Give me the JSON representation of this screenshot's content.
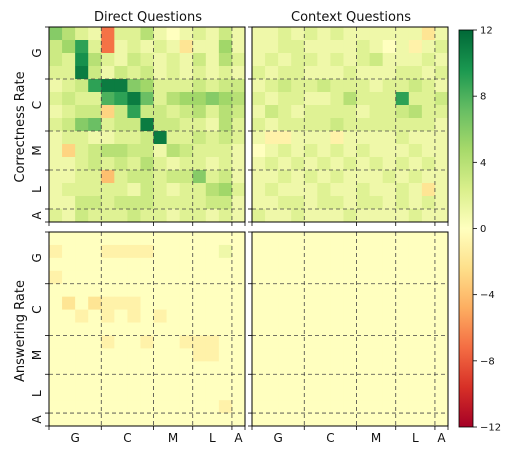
{
  "chart_data": {
    "type": "heatmap",
    "colormap": "RdYlGn",
    "colorbar": {
      "vmin": -12,
      "vmax": 12,
      "ticks": [
        "12",
        "8",
        "4",
        "0",
        "−4",
        "−8",
        "−12"
      ]
    },
    "column_titles": [
      "Direct Questions",
      "Context Questions"
    ],
    "row_titles": [
      "Correctness Rate",
      "Answering Rate"
    ],
    "group_labels": [
      "G",
      "C",
      "M",
      "L",
      "A"
    ],
    "group_sizes": [
      4,
      4,
      3,
      3,
      1
    ],
    "grid_size": 15,
    "note": "Cell values estimated from colour (units: change, range -12 to 12). Rows/columns ordered by groups G, C, M, L, A.",
    "panels": [
      {
        "name": "Correctness Rate / Direct Questions",
        "values": [
          [
            6,
            4,
            2,
            1,
            -7,
            2,
            2,
            4,
            1,
            0,
            1,
            2,
            1,
            3,
            1
          ],
          [
            3,
            5,
            9,
            2,
            -7,
            1,
            2,
            1,
            2,
            1,
            -2,
            1,
            1,
            5,
            1
          ],
          [
            3,
            2,
            10,
            4,
            2,
            1,
            3,
            2,
            1,
            2,
            1,
            3,
            1,
            4,
            2
          ],
          [
            2,
            2,
            11,
            3,
            1,
            3,
            2,
            3,
            1,
            2,
            1,
            2,
            1,
            2,
            1
          ],
          [
            1,
            2,
            3,
            9,
            11,
            11,
            6,
            5,
            2,
            2,
            2,
            3,
            2,
            3,
            3
          ],
          [
            2,
            3,
            2,
            2,
            8,
            9,
            11,
            7,
            2,
            4,
            5,
            5,
            6,
            5,
            4
          ],
          [
            1,
            2,
            3,
            3,
            -3,
            3,
            9,
            3,
            3,
            2,
            3,
            4,
            2,
            4,
            3
          ],
          [
            2,
            3,
            6,
            7,
            2,
            3,
            3,
            11,
            3,
            3,
            2,
            2,
            1,
            4,
            2
          ],
          [
            1,
            2,
            2,
            1,
            1,
            2,
            2,
            3,
            11,
            2,
            2,
            3,
            2,
            3,
            2
          ],
          [
            1,
            -3,
            2,
            3,
            4,
            4,
            3,
            3,
            1,
            4,
            3,
            2,
            2,
            2,
            1
          ],
          [
            1,
            1,
            2,
            3,
            2,
            3,
            2,
            4,
            2,
            1,
            2,
            2,
            1,
            2,
            1
          ],
          [
            1,
            1,
            2,
            2,
            -4,
            2,
            3,
            3,
            2,
            3,
            3,
            6,
            2,
            3,
            1
          ],
          [
            1,
            2,
            2,
            2,
            2,
            2,
            1,
            3,
            2,
            1,
            2,
            2,
            4,
            5,
            2
          ],
          [
            1,
            1,
            3,
            3,
            2,
            3,
            3,
            3,
            2,
            2,
            2,
            2,
            3,
            3,
            1
          ],
          [
            2,
            1,
            3,
            2,
            2,
            2,
            3,
            2,
            2,
            1,
            2,
            2,
            1,
            2,
            1
          ]
        ]
      },
      {
        "name": "Correctness Rate / Context Questions",
        "values": [
          [
            1,
            1,
            2,
            1,
            2,
            1,
            2,
            1,
            1,
            1,
            1,
            1,
            1,
            -2,
            1
          ],
          [
            1,
            1,
            2,
            2,
            1,
            1,
            1,
            1,
            2,
            1,
            0,
            1,
            -1,
            1,
            2
          ],
          [
            1,
            2,
            1,
            2,
            2,
            1,
            2,
            1,
            2,
            3,
            1,
            1,
            1,
            2,
            1
          ],
          [
            2,
            1,
            2,
            2,
            1,
            1,
            1,
            2,
            1,
            1,
            1,
            2,
            2,
            1,
            2
          ],
          [
            1,
            2,
            3,
            2,
            2,
            3,
            2,
            2,
            2,
            1,
            2,
            2,
            3,
            2,
            1
          ],
          [
            2,
            1,
            2,
            2,
            1,
            1,
            2,
            4,
            2,
            2,
            2,
            9,
            2,
            2,
            3
          ],
          [
            1,
            3,
            2,
            1,
            2,
            2,
            2,
            2,
            1,
            2,
            2,
            3,
            4,
            2,
            2
          ],
          [
            2,
            1,
            2,
            2,
            2,
            2,
            3,
            2,
            2,
            2,
            2,
            2,
            2,
            2,
            1
          ],
          [
            1,
            -1,
            -1,
            1,
            1,
            1,
            -1,
            1,
            1,
            1,
            1,
            2,
            1,
            1,
            1
          ],
          [
            0,
            1,
            2,
            1,
            2,
            1,
            2,
            1,
            2,
            1,
            1,
            1,
            2,
            1,
            1
          ],
          [
            1,
            2,
            1,
            2,
            1,
            2,
            1,
            2,
            1,
            2,
            1,
            2,
            1,
            2,
            1
          ],
          [
            1,
            1,
            2,
            1,
            2,
            1,
            2,
            1,
            1,
            1,
            2,
            1,
            2,
            1,
            1
          ],
          [
            1,
            2,
            1,
            1,
            1,
            2,
            1,
            1,
            2,
            1,
            1,
            2,
            1,
            -2,
            1
          ],
          [
            1,
            1,
            2,
            2,
            1,
            2,
            2,
            1,
            2,
            2,
            1,
            2,
            1,
            2,
            1
          ],
          [
            2,
            1,
            1,
            2,
            1,
            1,
            1,
            2,
            1,
            1,
            1,
            1,
            2,
            1,
            1
          ]
        ]
      },
      {
        "name": "Answering Rate / Direct Questions",
        "values": [
          [
            0,
            0,
            0,
            0,
            0,
            0,
            0,
            0,
            0,
            0,
            0,
            0,
            0,
            0,
            0
          ],
          [
            -1,
            0,
            0,
            0,
            -1,
            -1,
            -1,
            -1,
            0,
            0,
            0,
            0,
            0,
            1,
            0
          ],
          [
            0,
            0,
            0,
            0,
            0,
            0,
            0,
            0,
            0,
            0,
            0,
            0,
            0,
            0,
            0
          ],
          [
            -1,
            0,
            0,
            0,
            0,
            0,
            0,
            0,
            0,
            0,
            0,
            0,
            0,
            0,
            0
          ],
          [
            0,
            0,
            0,
            0,
            0,
            0,
            0,
            0,
            0,
            0,
            0,
            0,
            0,
            0,
            0
          ],
          [
            0,
            -2,
            0,
            -2,
            -1,
            -1,
            -1,
            0,
            0,
            0,
            0,
            0,
            0,
            0,
            0
          ],
          [
            0,
            0,
            -1,
            0,
            -1,
            0,
            -1,
            0,
            -1,
            0,
            0,
            0,
            0,
            0,
            0
          ],
          [
            0,
            0,
            0,
            0,
            0,
            0,
            0,
            0,
            0,
            0,
            0,
            0,
            0,
            0,
            0
          ],
          [
            0,
            0,
            0,
            0,
            -1,
            0,
            0,
            -1,
            0,
            0,
            -1,
            -1,
            -1,
            0,
            0
          ],
          [
            0,
            0,
            0,
            0,
            0,
            0,
            0,
            0,
            0,
            0,
            0,
            -1,
            -1,
            0,
            0
          ],
          [
            0,
            0,
            0,
            0,
            0,
            0,
            0,
            0,
            0,
            0,
            0,
            0,
            0,
            0,
            0
          ],
          [
            0,
            0,
            0,
            0,
            0,
            0,
            0,
            0,
            0,
            0,
            0,
            0,
            0,
            0,
            0
          ],
          [
            0,
            0,
            0,
            0,
            0,
            0,
            0,
            0,
            0,
            0,
            0,
            0,
            0,
            0,
            0
          ],
          [
            0,
            0,
            0,
            0,
            0,
            0,
            0,
            0,
            0,
            0,
            0,
            0,
            0,
            -1,
            0
          ],
          [
            0,
            0,
            0,
            0,
            0,
            0,
            0,
            0,
            0,
            0,
            0,
            0,
            0,
            0,
            0
          ]
        ]
      },
      {
        "name": "Answering Rate / Context Questions",
        "values": [
          [
            0,
            0,
            0,
            0,
            0,
            0,
            0,
            0,
            0,
            0,
            0,
            0,
            0,
            0,
            0
          ],
          [
            0,
            0,
            0,
            0,
            0,
            0,
            0,
            0,
            0,
            0,
            0,
            0,
            0,
            0,
            0
          ],
          [
            0,
            0,
            0,
            0,
            0,
            0,
            0,
            0,
            0,
            0,
            0,
            0,
            0,
            0,
            0
          ],
          [
            0,
            0,
            0,
            0,
            0,
            0,
            0,
            0,
            0,
            0,
            0,
            0,
            0,
            0,
            0
          ],
          [
            0,
            0,
            0,
            0,
            0,
            0,
            0,
            0,
            0,
            0,
            0,
            0,
            0,
            0,
            0
          ],
          [
            0,
            0,
            0,
            0,
            0,
            0,
            0,
            0,
            0,
            0,
            0,
            0,
            0,
            0,
            0
          ],
          [
            0,
            0,
            0,
            0,
            0,
            0,
            0,
            0,
            0,
            0,
            0,
            0,
            0,
            0,
            0
          ],
          [
            0,
            0,
            0,
            0,
            0,
            0,
            0,
            0,
            0,
            0,
            0,
            0,
            0,
            0,
            0
          ],
          [
            0,
            0,
            0,
            0,
            0,
            0,
            0,
            0,
            0,
            0,
            0,
            0,
            0,
            0,
            0
          ],
          [
            0,
            0,
            0,
            0,
            0,
            0,
            0,
            0,
            0,
            0,
            0,
            0,
            0,
            0,
            0
          ],
          [
            0,
            0,
            0,
            0,
            0,
            0,
            0,
            0,
            0,
            0,
            0,
            0,
            0,
            0,
            0
          ],
          [
            0,
            0,
            0,
            0,
            0,
            0,
            0,
            0,
            0,
            0,
            0,
            0,
            0,
            0,
            0
          ],
          [
            0,
            0,
            0,
            0,
            0,
            0,
            0,
            0,
            0,
            0,
            0,
            0,
            0,
            0,
            0
          ],
          [
            0,
            0,
            0,
            0,
            0,
            0,
            0,
            0,
            0,
            0,
            0,
            0,
            0,
            0,
            0
          ],
          [
            0,
            0,
            0,
            0,
            0,
            0,
            0,
            0,
            0,
            0,
            0,
            0,
            0,
            0,
            0
          ]
        ]
      }
    ]
  }
}
